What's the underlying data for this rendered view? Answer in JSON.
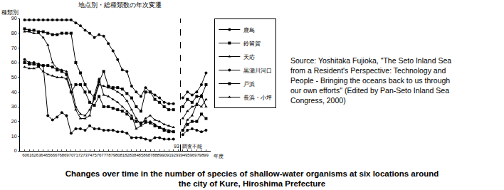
{
  "chart_data": {
    "type": "line",
    "title": "地点別・総種類数の年次変遷",
    "y_label": "種類別",
    "x_label": "年度",
    "x": [
      60,
      61,
      62,
      63,
      64,
      65,
      66,
      67,
      68,
      69,
      70,
      71,
      72,
      73,
      74,
      75,
      76,
      77,
      78,
      79,
      80,
      81,
      82,
      83,
      84,
      85,
      86,
      87,
      88,
      89,
      90,
      91,
      92,
      93,
      94,
      95,
      96,
      97,
      98,
      99
    ],
    "series": [
      {
        "name": "鹿島",
        "color": "#000000",
        "marker": "circle",
        "values": [
          89,
          89,
          89,
          89,
          89,
          89,
          89,
          89,
          89,
          89,
          89,
          87,
          85,
          82,
          80,
          77,
          79,
          78,
          73,
          68,
          62,
          55,
          54,
          44,
          40,
          37,
          43,
          40,
          38,
          36,
          33,
          32,
          32,
          null,
          36,
          40,
          38,
          40,
          45,
          53
        ]
      },
      {
        "name": "鈴留賀",
        "color": "#000000",
        "marker": "square",
        "values": [
          83,
          82,
          82,
          81,
          81,
          80,
          79,
          79,
          80,
          80,
          80,
          60,
          53,
          45,
          40,
          36,
          47,
          54,
          44,
          43,
          43,
          42,
          39,
          36,
          30,
          27,
          40,
          40,
          35,
          33,
          30,
          28,
          28,
          null,
          30,
          35,
          33,
          37,
          37,
          45
        ]
      },
      {
        "name": "天応",
        "color": "#000000",
        "marker": "triangle",
        "values": [
          81,
          81,
          80,
          80,
          77,
          72,
          60,
          56,
          55,
          54,
          45,
          30,
          25,
          24,
          28,
          35,
          45,
          44,
          43,
          42,
          40,
          38,
          34,
          28,
          22,
          18,
          22,
          24,
          21,
          20,
          18,
          17,
          16,
          null,
          22,
          27,
          30,
          31,
          38,
          30
        ]
      },
      {
        "name": "黒瀬川河口",
        "color": "#000000",
        "marker": "circle",
        "values": [
          62,
          60,
          60,
          59,
          58,
          24,
          21,
          23,
          26,
          24,
          12,
          15,
          15,
          14,
          17,
          15,
          15,
          14,
          14,
          14,
          13,
          13,
          12,
          9,
          9,
          9,
          8,
          7,
          9,
          9,
          8,
          8,
          8,
          null,
          11,
          14,
          15,
          14,
          13,
          14
        ]
      },
      {
        "name": "戸浜",
        "color": "#000000",
        "marker": "square",
        "values": [
          60,
          59,
          59,
          58,
          58,
          58,
          57,
          55,
          54,
          52,
          40,
          45,
          45,
          40,
          33,
          31,
          37,
          30,
          30,
          29,
          28,
          27,
          25,
          22,
          20,
          19,
          20,
          19,
          17,
          16,
          14,
          13,
          13,
          null,
          14,
          18,
          20,
          20,
          25,
          22
        ]
      },
      {
        "name": "長浜・小坪",
        "color": "#000000",
        "marker": "triangle",
        "values": [
          57,
          56,
          56,
          57,
          54,
          52,
          51,
          50,
          50,
          49,
          40,
          28,
          22,
          22,
          24,
          38,
          49,
          38,
          37,
          35,
          33,
          30,
          27,
          24,
          15,
          17,
          19,
          20,
          18,
          16,
          15,
          14,
          13,
          null,
          14,
          21,
          24,
          32,
          30,
          35
        ]
      }
    ],
    "xlim": [
      59,
      100
    ],
    "xticks": [
      60,
      61,
      62,
      63,
      64,
      65,
      66,
      67,
      68,
      69,
      70,
      71,
      72,
      73,
      74,
      75,
      76,
      77,
      78,
      79,
      80,
      81,
      82,
      83,
      84,
      85,
      86,
      87,
      88,
      89,
      90,
      91,
      92,
      93,
      94,
      95,
      96,
      97,
      98,
      99
    ],
    "ylim": [
      0,
      90
    ],
    "yticks": [
      0,
      10,
      20,
      30,
      40,
      50,
      60,
      70,
      80,
      90
    ],
    "grid": false,
    "legend": "right",
    "annotations": [
      {
        "x": 92.6,
        "y": 3,
        "text": "93"
      },
      {
        "x": 96,
        "y": 3,
        "text": "調査不能"
      }
    ],
    "vlines": [
      {
        "x": 93.5,
        "line_style": "dashed"
      }
    ]
  },
  "source": [
    "Source: Yoshitaka Fujioka, \"The Seto Inland Sea",
    "from a Resident's Perspective:  Technology and",
    "People - Bringing the oceans back to us through",
    "our own efforts\" (Edited by Pan-Seto Inland Sea",
    "Congress, 2000)"
  ],
  "caption": [
    "Changes over time in the number of species of shallow-water organisms at six locations around",
    "the city of Kure, Hiroshima Prefecture"
  ]
}
